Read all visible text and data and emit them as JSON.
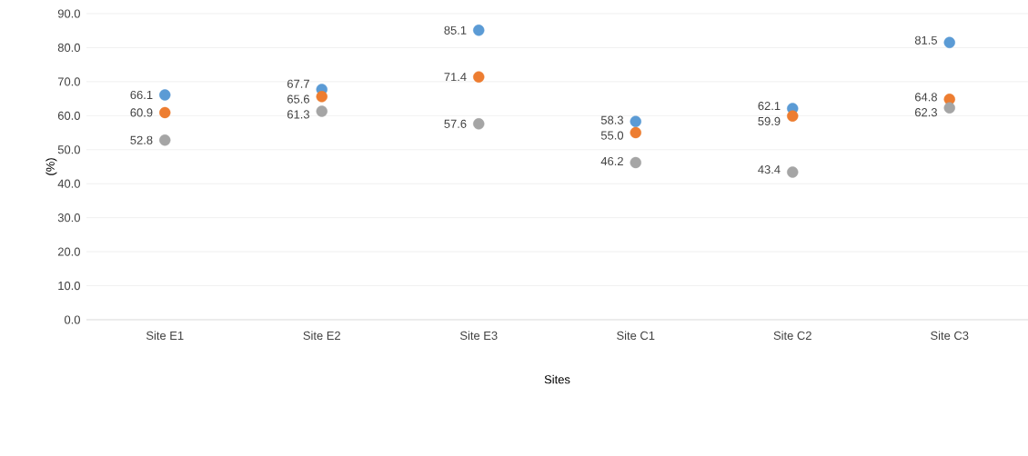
{
  "chart_data": {
    "type": "scatter",
    "xlabel": "Sites",
    "ylabel": "(%)",
    "categories": [
      "Site E1",
      "Site E2",
      "Site E3",
      "Site C1",
      "Site C2",
      "Site C3"
    ],
    "series": [
      {
        "color": "#5b9bd5",
        "values": [
          66.1,
          67.7,
          85.1,
          58.3,
          62.1,
          81.5
        ],
        "value_labels": [
          "66.1",
          "67.7",
          "85.1",
          "58.3",
          "62.1",
          "81.5"
        ]
      },
      {
        "color": "#ed7d31",
        "values": [
          60.9,
          65.6,
          71.4,
          55.0,
          59.9,
          64.8
        ],
        "value_labels": [
          "60.9",
          "65.6",
          "71.4",
          "55.0",
          "59.9",
          "64.8"
        ]
      },
      {
        "color": "#a5a5a5",
        "values": [
          52.8,
          61.3,
          57.6,
          46.2,
          43.4,
          62.3
        ],
        "value_labels": [
          "52.8",
          "61.3",
          "57.6",
          "46.2",
          "43.4",
          "62.3"
        ]
      }
    ],
    "ylim": [
      0,
      90
    ],
    "yticks": [
      {
        "value": 0,
        "label": "0.0"
      },
      {
        "value": 10,
        "label": "10.0"
      },
      {
        "value": 20,
        "label": "20.0"
      },
      {
        "value": 30,
        "label": "30.0"
      },
      {
        "value": 40,
        "label": "40.0"
      },
      {
        "value": 50,
        "label": "50.0"
      },
      {
        "value": 60,
        "label": "60.0"
      },
      {
        "value": 70,
        "label": "70.0"
      },
      {
        "value": 80,
        "label": "80.0"
      },
      {
        "value": 90,
        "label": "90.0"
      }
    ],
    "grid": "y",
    "legend": false
  }
}
